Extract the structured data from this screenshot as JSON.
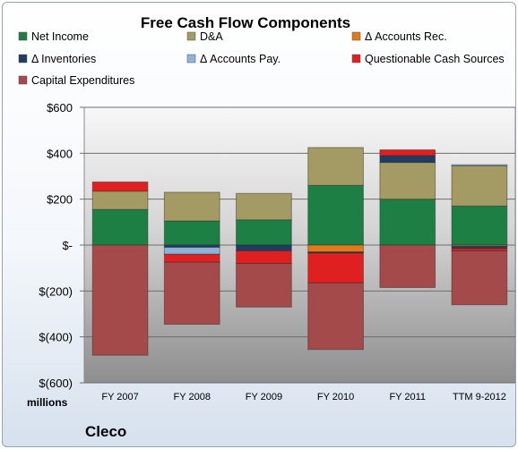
{
  "chart_data": {
    "type": "bar",
    "stacked": true,
    "title": "Free Cash Flow Components",
    "categories": [
      "FY 2007",
      "FY 2008",
      "FY 2009",
      "FY 2010",
      "FY 2011",
      "TTM 9-2012"
    ],
    "y_tick_labels": [
      "$600",
      "$400",
      "$200",
      "$-",
      "$(200)",
      "$(400)",
      "$(600)"
    ],
    "y_ticks": [
      600,
      400,
      200,
      0,
      -200,
      -400,
      -600
    ],
    "ylim": [
      -600,
      600
    ],
    "units_label": "millions",
    "footer_label": "Cleco",
    "legend_position": "top",
    "grid": true,
    "series": [
      {
        "name": "Net Income",
        "color": "#1e7f45",
        "values": [
          155,
          105,
          110,
          260,
          200,
          170
        ]
      },
      {
        "name": "D&A",
        "color": "#a49a64",
        "values": [
          80,
          125,
          115,
          165,
          160,
          175
        ]
      },
      {
        "name": "Δ Accounts Rec.",
        "color": "#e07a1a",
        "values": [
          0,
          0,
          0,
          -30,
          0,
          -5
        ]
      },
      {
        "name": "Δ Inventories",
        "color": "#1f3c63",
        "values": [
          0,
          -10,
          -25,
          -5,
          30,
          -10
        ]
      },
      {
        "name": "Δ Accounts Pay.",
        "color": "#8fb3d9",
        "values": [
          0,
          -30,
          0,
          0,
          0,
          5
        ]
      },
      {
        "name": "Questionable Cash Sources",
        "color": "#e02020",
        "values": [
          40,
          -35,
          -55,
          -130,
          25,
          -10
        ]
      },
      {
        "name": "Capital Expenditures",
        "color": "#a44a4a",
        "values": [
          -480,
          -270,
          -190,
          -290,
          -185,
          -235
        ]
      }
    ]
  }
}
